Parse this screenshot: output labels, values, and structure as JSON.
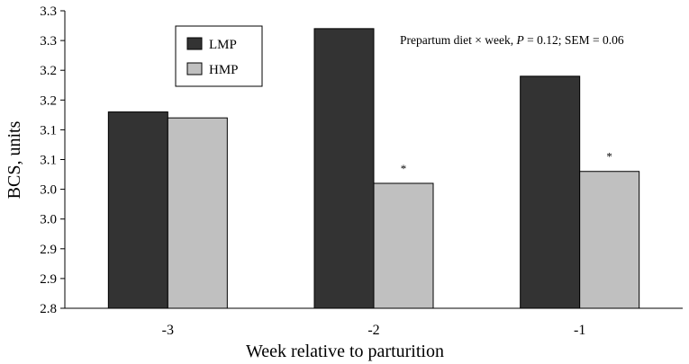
{
  "chart_data": {
    "type": "bar",
    "xlabel": "Week relative to parturition",
    "ylabel": "BCS, units",
    "categories": [
      "-3",
      "-2",
      "-1"
    ],
    "series": [
      {
        "name": "LMP",
        "color": "#333333",
        "values": [
          3.13,
          3.27,
          3.19
        ]
      },
      {
        "name": "HMP",
        "color": "#c0c0c0",
        "values": [
          3.12,
          3.01,
          3.03
        ]
      }
    ],
    "significance": [
      {
        "category": "-2",
        "series": "HMP",
        "mark": "*"
      },
      {
        "category": "-1",
        "series": "HMP",
        "mark": "*"
      }
    ],
    "ylim": [
      2.8,
      3.3
    ],
    "yticks": [
      2.8,
      2.85,
      2.9,
      2.95,
      3.0,
      3.05,
      3.1,
      3.15,
      3.2,
      3.25,
      3.3
    ],
    "ytick_labels": [
      "2.8",
      "2.9",
      "2.9",
      "3.0",
      "3.0",
      "3.1",
      "3.1",
      "3.2",
      "3.2",
      "3.3",
      "3.3"
    ],
    "annotation": {
      "prefix": "Prepartum diet × week, ",
      "p_symbol": "P",
      "suffix": " = 0.12;  SEM = 0.06"
    },
    "legend": {
      "entries": [
        "LMP",
        "HMP"
      ],
      "placement": "top-left"
    },
    "grid": false
  }
}
